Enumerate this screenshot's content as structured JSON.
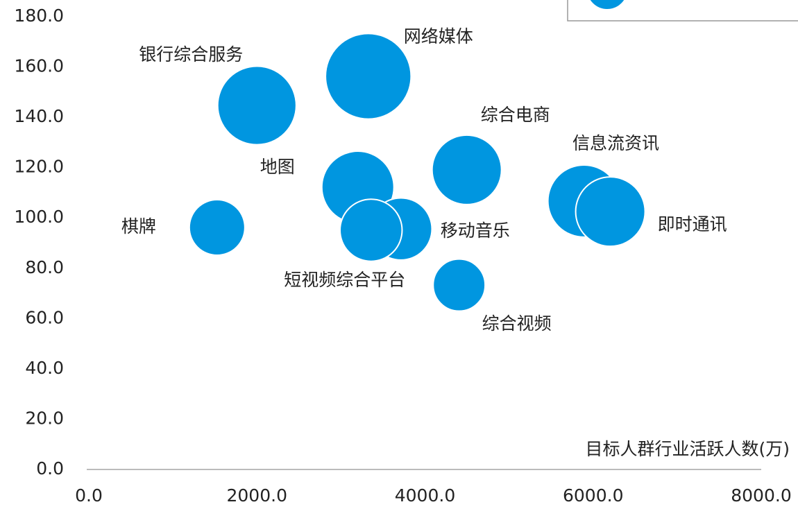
{
  "chart_data": {
    "type": "bubble",
    "x_label": "目标人群行业活跃人数(万)",
    "color": "#0096e0",
    "categories": [
      "银行综合服务",
      "网络媒体",
      "综合电商",
      "信息流资讯",
      "即时通讯",
      "地图",
      "移动音乐",
      "短视频综合平台",
      "棋牌",
      "综合视频"
    ],
    "x": [
      2000,
      3325,
      4497,
      5891,
      6205,
      3201,
      3713,
      3358,
      1526,
      4406
    ],
    "values": [
      144.7,
      156.3,
      119.1,
      106.7,
      102.5,
      112.2,
      95.6,
      95.1,
      96.2,
      73.3
    ],
    "sizes": [
      32,
      38,
      25,
      27,
      25,
      27,
      20,
      20,
      16,
      14
    ],
    "xlim": [
      0,
      8000
    ],
    "xticks": [
      {
        "value": 0,
        "label": "0.0"
      },
      {
        "value": 2000,
        "label": "2000.0"
      },
      {
        "value": 4000,
        "label": "4000.0"
      },
      {
        "value": 6000,
        "label": "6000.0"
      },
      {
        "value": 8000,
        "label": "8000.0"
      }
    ],
    "ylim": [
      0,
      180
    ],
    "yticks": [
      {
        "value": 0,
        "label": "0.0"
      },
      {
        "value": 20,
        "label": "20.0"
      },
      {
        "value": 40,
        "label": "40.0"
      },
      {
        "value": 60,
        "label": "60.0"
      },
      {
        "value": 80,
        "label": "80.0"
      },
      {
        "value": 100,
        "label": "100.0"
      },
      {
        "value": 120,
        "label": "120.0"
      },
      {
        "value": 140,
        "label": "140.0"
      },
      {
        "value": 160,
        "label": "160.0"
      },
      {
        "value": 180,
        "label": "180.0"
      }
    ],
    "grid": false
  }
}
